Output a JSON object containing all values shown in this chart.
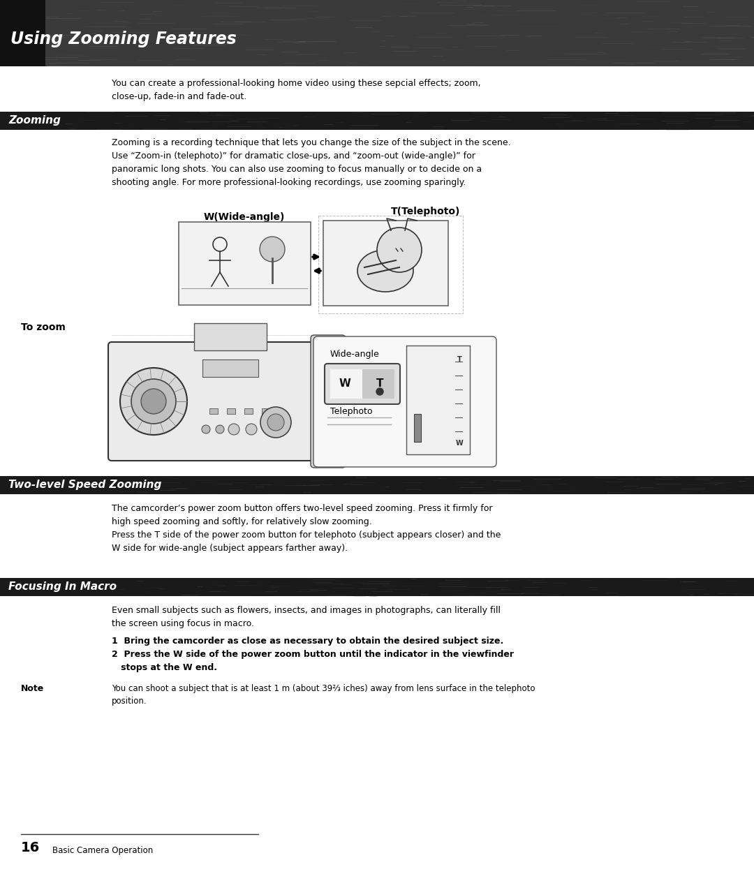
{
  "page_width": 10.8,
  "page_height": 12.65,
  "bg_color": "#ffffff",
  "header_text": "Using Zooming Features",
  "header_text_color": "#ffffff",
  "section1_text": "Zooming",
  "section1_text_color": "#ffffff",
  "section2_text": "Two-level Speed Zooming",
  "section2_text_color": "#ffffff",
  "section3_text": "Focusing In Macro",
  "section3_text_color": "#ffffff",
  "intro_text": "You can create a professional-looking home video using these sepcial effects; zoom,\nclose-up, fade-in and fade-out.",
  "zooming_body": "Zooming is a recording technique that lets you change the size of the subject in the scene.\nUse “Zoom-in (telephoto)” for dramatic close-ups, and “zoom-out (wide-angle)” for\npanoramic long shots. You can also use zooming to focus manually or to decide on a\nshooting angle. For more professional-looking recordings, use zooming sparingly.",
  "to_zoom_label": "To zoom",
  "wide_angle_label": "W(Wide-angle)",
  "telephoto_label": "T(Telephoto)",
  "wide_angle_box_label": "Wide-angle",
  "telephoto_box_label": "Telephoto",
  "speed_zoom_body": "The camcorder’s power zoom button offers two-level speed zooming. Press it firmly for\nhigh speed zooming and softly, for relatively slow zooming.\nPress the T side of the power zoom button for telephoto (subject appears closer) and the\nW side for wide-angle (subject appears farther away).",
  "macro_body1": "Even small subjects such as flowers, insects, and images in photographs, can literally fill\nthe screen using focus in macro.",
  "macro_body2": "1  Bring the camcorder as close as necessary to obtain the desired subject size.\n2  Press the W side of the power zoom button until the indicator in the viewfinder\n   stops at the W end.",
  "note_label": "Note",
  "note_text": "You can shoot a subject that is at least 1 m (about 39⅔ iches) away from lens surface in the telephoto\nposition.",
  "footer_num": "16",
  "footer_text": "Basic Camera Operation",
  "text_color": "#000000",
  "body_fontsize": 9.0,
  "header_fontsize": 17,
  "section_fontsize": 11,
  "dark_bg": "#1c1c1c",
  "section_bar_color": "#1a1a1a",
  "header_noise_color": "#555555"
}
